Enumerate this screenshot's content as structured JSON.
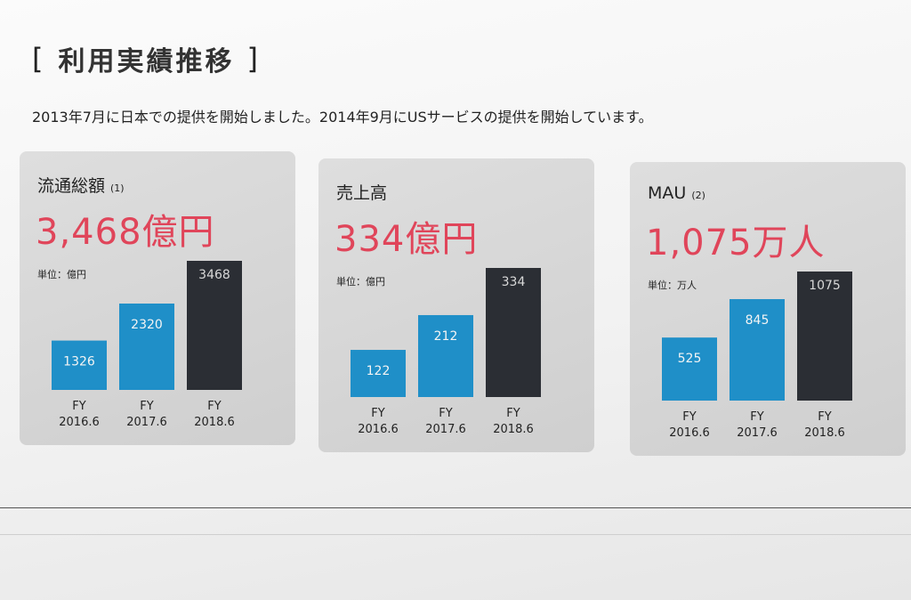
{
  "heading": {
    "open_bracket": "[",
    "title": "利用実績推移",
    "close_bracket": "]"
  },
  "intro_text": "2013年7月に日本での提供を開始しました。2014年9月にUSサービスの提供を開始しています。",
  "colors": {
    "past": "#1f8fc8",
    "current": "#2b2e34",
    "value": "#e0455a"
  },
  "panels": [
    {
      "title": "流通総額",
      "note": "(1)",
      "value_label": "3,468億円",
      "unit_label": "単位：億円"
    },
    {
      "title": "売上高",
      "note": "",
      "value_label": "334億円",
      "unit_label": "単位：億円"
    },
    {
      "title": "MAU",
      "note": "(2)",
      "value_label": "1,075万人",
      "unit_label": "単位：万人"
    }
  ],
  "chart_data": [
    {
      "type": "bar",
      "categories": [
        "FY 2016.6",
        "FY 2017.6",
        "FY 2018.6"
      ],
      "values": [
        1326,
        2320,
        3468
      ],
      "value_labels": [
        "1326",
        "2320",
        "3468"
      ],
      "title": "流通総額",
      "ylabel": "単位：億円"
    },
    {
      "type": "bar",
      "categories": [
        "FY 2016.6",
        "FY 2017.6",
        "FY 2018.6"
      ],
      "values": [
        122,
        212,
        334
      ],
      "value_labels": [
        "122",
        "212",
        "334"
      ],
      "title": "売上高",
      "ylabel": "単位：億円"
    },
    {
      "type": "bar",
      "categories": [
        "FY 2016.6",
        "FY 2017.6",
        "FY 2018.6"
      ],
      "values": [
        525,
        845,
        1075
      ],
      "value_labels": [
        "525",
        "845",
        "1075"
      ],
      "title": "MAU",
      "ylabel": "単位：万人"
    }
  ]
}
